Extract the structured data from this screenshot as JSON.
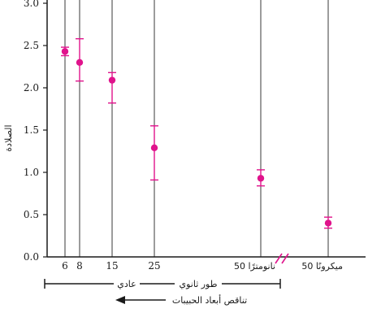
{
  "chart_data": {
    "type": "scatter",
    "title": "",
    "ylabel": "الصلادة",
    "ylim": [
      0.0,
      3.0
    ],
    "yticks": [
      "0.0",
      "0.5",
      "1.0",
      "1.5",
      "2.0",
      "2.5",
      "3.0"
    ],
    "x_labels": [
      "6",
      "8",
      "15",
      "25",
      "50 نانومترًا",
      "50 ميكرونًا"
    ],
    "series": [
      {
        "points": [
          {
            "x": "6",
            "y": 2.43,
            "err_low": 2.38,
            "err_high": 2.48
          },
          {
            "x": "8",
            "y": 2.3,
            "err_low": 2.08,
            "err_high": 2.58
          },
          {
            "x": "15",
            "y": 2.09,
            "err_low": 1.82,
            "err_high": 2.18
          },
          {
            "x": "25",
            "y": 1.29,
            "err_low": 0.91,
            "err_high": 1.55
          },
          {
            "x": "50 نانومترًا",
            "y": 0.93,
            "err_low": 0.84,
            "err_high": 1.03
          },
          {
            "x": "50 ميكرونًا",
            "y": 0.4,
            "err_low": 0.34,
            "err_high": 0.47
          }
        ],
        "color": "#e0138c"
      }
    ],
    "regions": [
      "عادي",
      "طور ثانوي"
    ],
    "direction_label": "تناقص أبعاد الحبيبات",
    "grid": "vertical",
    "legend": "none"
  }
}
